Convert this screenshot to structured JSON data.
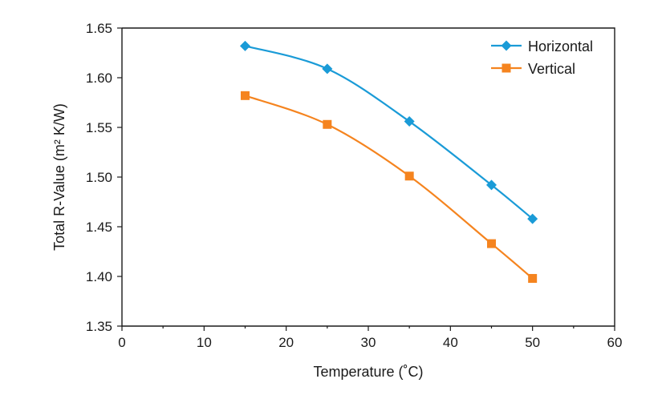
{
  "chart_data": {
    "type": "line",
    "title": "",
    "xlabel": "Temperature (˚C)",
    "ylabel": "Total R-Value (m² K/W)",
    "xlim": [
      0,
      60
    ],
    "ylim": [
      1.35,
      1.65
    ],
    "xticks": [
      "0",
      "10",
      "20",
      "30",
      "40",
      "50",
      "60"
    ],
    "yticks": [
      "1.35",
      "1.40",
      "1.45",
      "1.50",
      "1.55",
      "1.60",
      "1.65"
    ],
    "grid": false,
    "legend_position": "top-right",
    "series": [
      {
        "name": "Horizontal",
        "color": "#1a9bd7",
        "marker": "diamond",
        "x": [
          15,
          25,
          35,
          45,
          50
        ],
        "y": [
          1.632,
          1.609,
          1.556,
          1.492,
          1.458
        ]
      },
      {
        "name": "Vertical",
        "color": "#f5841f",
        "marker": "square",
        "x": [
          15,
          25,
          35,
          45,
          50
        ],
        "y": [
          1.582,
          1.553,
          1.501,
          1.433,
          1.398
        ]
      }
    ]
  }
}
